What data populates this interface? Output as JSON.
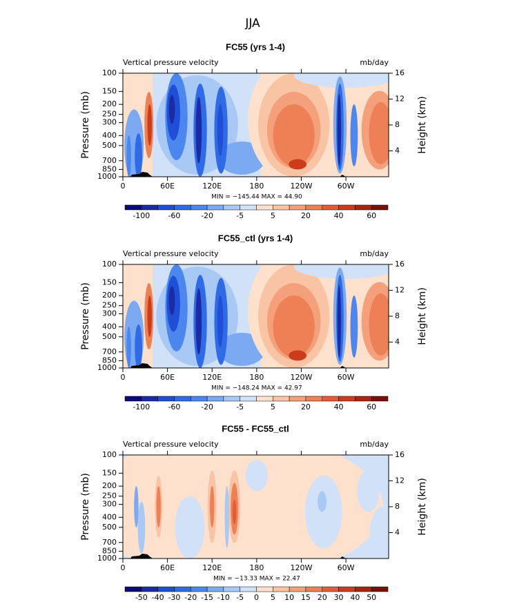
{
  "title": "JJA",
  "chart_data": [
    {
      "type": "contour",
      "title": "FC55 (yrs 1-4)",
      "subtitle": "Vertical pressure velocity",
      "units": "mb/day",
      "ylabel": "Pressure (mb)",
      "y2label": "Height (km)",
      "log_y": true,
      "xlim": [
        0,
        357.5
      ],
      "xticks": [
        0,
        {
          "value": 60,
          "label": "60E"
        },
        {
          "value": 120,
          "label": "120E"
        },
        180,
        {
          "value": 240,
          "label": "120W"
        },
        {
          "value": 300,
          "label": "60W"
        }
      ],
      "ylim": [
        1000,
        100
      ],
      "yticks": [
        100,
        150,
        200,
        250,
        300,
        400,
        500,
        700,
        850,
        1000
      ],
      "y2lim": [
        0,
        16
      ],
      "y2ticks": [
        4,
        8,
        12,
        16
      ],
      "stats": "MIN = −145.44   MAX =  44.90",
      "colorbar_colors": [
        "#0b0b78",
        "#1a2ba6",
        "#1f4fd4",
        "#2f6be6",
        "#4b87ee",
        "#7ba9f2",
        "#a9c9f5",
        "#d0e1f8",
        "#fde1cd",
        "#f9c4a4",
        "#f4a17b",
        "#ee8056",
        "#e55b34",
        "#cc3c1b",
        "#a92511",
        "#7a1108"
      ],
      "colorbar_labels": [
        "-100",
        "-60",
        "-20",
        "-5",
        "5",
        "20",
        "40",
        "60"
      ]
    },
    {
      "type": "contour",
      "title": "FC55_ctl (yrs 1-4)",
      "subtitle": "Vertical pressure velocity",
      "units": "mb/day",
      "ylabel": "Pressure (mb)",
      "y2label": "Height (km)",
      "log_y": true,
      "xlim": [
        0,
        357.5
      ],
      "xticks": [
        0,
        {
          "value": 60,
          "label": "60E"
        },
        {
          "value": 120,
          "label": "120E"
        },
        180,
        {
          "value": 240,
          "label": "120W"
        },
        {
          "value": 300,
          "label": "60W"
        }
      ],
      "ylim": [
        1000,
        100
      ],
      "yticks": [
        100,
        150,
        200,
        250,
        300,
        400,
        500,
        700,
        850,
        1000
      ],
      "y2lim": [
        0,
        16
      ],
      "y2ticks": [
        4,
        8,
        12,
        16
      ],
      "stats": "MIN = −148.24   MAX =  42.97",
      "colorbar_colors": [
        "#0b0b78",
        "#1a2ba6",
        "#1f4fd4",
        "#2f6be6",
        "#4b87ee",
        "#7ba9f2",
        "#a9c9f5",
        "#d0e1f8",
        "#fde1cd",
        "#f9c4a4",
        "#f4a17b",
        "#ee8056",
        "#e55b34",
        "#cc3c1b",
        "#a92511",
        "#7a1108"
      ],
      "colorbar_labels": [
        "-100",
        "-60",
        "-20",
        "-5",
        "5",
        "20",
        "40",
        "60"
      ]
    },
    {
      "type": "contour",
      "title": "FC55 - FC55_ctl",
      "subtitle": "Vertical pressure velocity",
      "units": "mb/day",
      "ylabel": "Pressure (mb)",
      "y2label": "Height (km)",
      "log_y": true,
      "xlim": [
        0,
        357.5
      ],
      "xticks": [
        0,
        {
          "value": 60,
          "label": "60E"
        },
        {
          "value": 120,
          "label": "120E"
        },
        180,
        {
          "value": 240,
          "label": "120W"
        },
        {
          "value": 300,
          "label": "60W"
        }
      ],
      "ylim": [
        1000,
        100
      ],
      "yticks": [
        100,
        150,
        200,
        250,
        300,
        400,
        500,
        700,
        850,
        1000
      ],
      "y2lim": [
        0,
        16
      ],
      "y2ticks": [
        4,
        8,
        12,
        16
      ],
      "stats": "MIN = −13.33   MAX =  22.47",
      "colorbar_colors": [
        "#0b0b78",
        "#1a2ba6",
        "#1f4fd4",
        "#2f6be6",
        "#4b87ee",
        "#7ba9f2",
        "#a9c9f5",
        "#d0e1f8",
        "#fde1cd",
        "#f9c4a4",
        "#f4a17b",
        "#ee8056",
        "#e55b34",
        "#cc3c1b",
        "#a92511",
        "#7a1108"
      ],
      "colorbar_labels": [
        "-50",
        "-40",
        "-30",
        "-20",
        "-15",
        "-10",
        "-5",
        "0",
        "5",
        "10",
        "15",
        "20",
        "30",
        "40",
        "50"
      ]
    }
  ]
}
